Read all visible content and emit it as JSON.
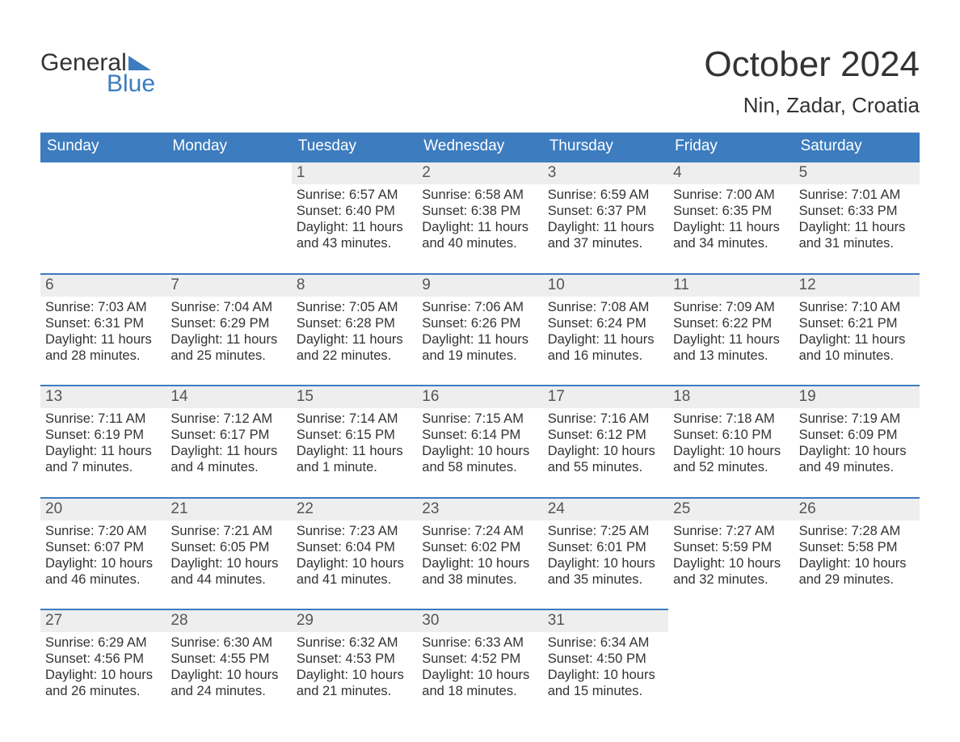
{
  "logo": {
    "line1": "General",
    "line2": "Blue"
  },
  "title": "October 2024",
  "location": "Nin, Zadar, Croatia",
  "theme": {
    "header_bg": "#3c7cbf",
    "header_text": "#ffffff",
    "daynum_bg": "#eeeeee",
    "cell_border": "#3c7cbf",
    "body_text": "#333333",
    "page_bg": "#ffffff",
    "logo_accent": "#3c7cbf"
  },
  "calendar": {
    "weekday_labels": [
      "Sunday",
      "Monday",
      "Tuesday",
      "Wednesday",
      "Thursday",
      "Friday",
      "Saturday"
    ],
    "field_prefixes": {
      "sunrise": "Sunrise: ",
      "sunset": "Sunset: ",
      "daylight": "Daylight: "
    },
    "lead_blanks": 2,
    "days": [
      {
        "n": 1,
        "sunrise": "6:57 AM",
        "sunset": "6:40 PM",
        "daylight": "11 hours and 43 minutes."
      },
      {
        "n": 2,
        "sunrise": "6:58 AM",
        "sunset": "6:38 PM",
        "daylight": "11 hours and 40 minutes."
      },
      {
        "n": 3,
        "sunrise": "6:59 AM",
        "sunset": "6:37 PM",
        "daylight": "11 hours and 37 minutes."
      },
      {
        "n": 4,
        "sunrise": "7:00 AM",
        "sunset": "6:35 PM",
        "daylight": "11 hours and 34 minutes."
      },
      {
        "n": 5,
        "sunrise": "7:01 AM",
        "sunset": "6:33 PM",
        "daylight": "11 hours and 31 minutes."
      },
      {
        "n": 6,
        "sunrise": "7:03 AM",
        "sunset": "6:31 PM",
        "daylight": "11 hours and 28 minutes."
      },
      {
        "n": 7,
        "sunrise": "7:04 AM",
        "sunset": "6:29 PM",
        "daylight": "11 hours and 25 minutes."
      },
      {
        "n": 8,
        "sunrise": "7:05 AM",
        "sunset": "6:28 PM",
        "daylight": "11 hours and 22 minutes."
      },
      {
        "n": 9,
        "sunrise": "7:06 AM",
        "sunset": "6:26 PM",
        "daylight": "11 hours and 19 minutes."
      },
      {
        "n": 10,
        "sunrise": "7:08 AM",
        "sunset": "6:24 PM",
        "daylight": "11 hours and 16 minutes."
      },
      {
        "n": 11,
        "sunrise": "7:09 AM",
        "sunset": "6:22 PM",
        "daylight": "11 hours and 13 minutes."
      },
      {
        "n": 12,
        "sunrise": "7:10 AM",
        "sunset": "6:21 PM",
        "daylight": "11 hours and 10 minutes."
      },
      {
        "n": 13,
        "sunrise": "7:11 AM",
        "sunset": "6:19 PM",
        "daylight": "11 hours and 7 minutes."
      },
      {
        "n": 14,
        "sunrise": "7:12 AM",
        "sunset": "6:17 PM",
        "daylight": "11 hours and 4 minutes."
      },
      {
        "n": 15,
        "sunrise": "7:14 AM",
        "sunset": "6:15 PM",
        "daylight": "11 hours and 1 minute."
      },
      {
        "n": 16,
        "sunrise": "7:15 AM",
        "sunset": "6:14 PM",
        "daylight": "10 hours and 58 minutes."
      },
      {
        "n": 17,
        "sunrise": "7:16 AM",
        "sunset": "6:12 PM",
        "daylight": "10 hours and 55 minutes."
      },
      {
        "n": 18,
        "sunrise": "7:18 AM",
        "sunset": "6:10 PM",
        "daylight": "10 hours and 52 minutes."
      },
      {
        "n": 19,
        "sunrise": "7:19 AM",
        "sunset": "6:09 PM",
        "daylight": "10 hours and 49 minutes."
      },
      {
        "n": 20,
        "sunrise": "7:20 AM",
        "sunset": "6:07 PM",
        "daylight": "10 hours and 46 minutes."
      },
      {
        "n": 21,
        "sunrise": "7:21 AM",
        "sunset": "6:05 PM",
        "daylight": "10 hours and 44 minutes."
      },
      {
        "n": 22,
        "sunrise": "7:23 AM",
        "sunset": "6:04 PM",
        "daylight": "10 hours and 41 minutes."
      },
      {
        "n": 23,
        "sunrise": "7:24 AM",
        "sunset": "6:02 PM",
        "daylight": "10 hours and 38 minutes."
      },
      {
        "n": 24,
        "sunrise": "7:25 AM",
        "sunset": "6:01 PM",
        "daylight": "10 hours and 35 minutes."
      },
      {
        "n": 25,
        "sunrise": "7:27 AM",
        "sunset": "5:59 PM",
        "daylight": "10 hours and 32 minutes."
      },
      {
        "n": 26,
        "sunrise": "7:28 AM",
        "sunset": "5:58 PM",
        "daylight": "10 hours and 29 minutes."
      },
      {
        "n": 27,
        "sunrise": "6:29 AM",
        "sunset": "4:56 PM",
        "daylight": "10 hours and 26 minutes."
      },
      {
        "n": 28,
        "sunrise": "6:30 AM",
        "sunset": "4:55 PM",
        "daylight": "10 hours and 24 minutes."
      },
      {
        "n": 29,
        "sunrise": "6:32 AM",
        "sunset": "4:53 PM",
        "daylight": "10 hours and 21 minutes."
      },
      {
        "n": 30,
        "sunrise": "6:33 AM",
        "sunset": "4:52 PM",
        "daylight": "10 hours and 18 minutes."
      },
      {
        "n": 31,
        "sunrise": "6:34 AM",
        "sunset": "4:50 PM",
        "daylight": "10 hours and 15 minutes."
      }
    ]
  }
}
